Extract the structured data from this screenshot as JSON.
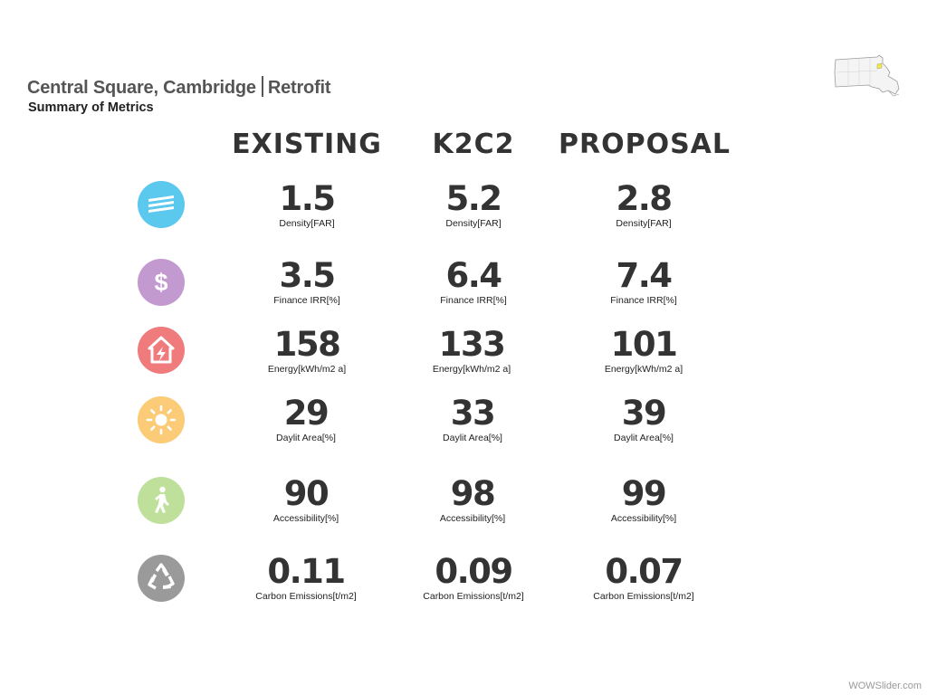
{
  "header": {
    "location": "Central Square, Cambridge",
    "scenario": "Retrofit",
    "subtitle": "Summary of Metrics"
  },
  "columns": [
    "EXISTING",
    "K2C2",
    "PROPOSAL"
  ],
  "metrics": [
    {
      "icon": "layers-icon",
      "color": "#5bc8ee",
      "label": "Density[FAR]",
      "values": [
        "1.5",
        "5.2",
        "2.8"
      ]
    },
    {
      "icon": "dollar-icon",
      "color": "#c39ad0",
      "label": "Finance IRR[%]",
      "values": [
        "3.5",
        "6.4",
        "7.4"
      ]
    },
    {
      "icon": "energy-house-icon",
      "color": "#ef7b7d",
      "label": "Energy[kWh/m2 a]",
      "values": [
        "158",
        "133",
        "101"
      ]
    },
    {
      "icon": "sun-icon",
      "color": "#fccb77",
      "label": "Daylit Area[%]",
      "values": [
        "29",
        "33",
        "39"
      ]
    },
    {
      "icon": "pedestrian-icon",
      "color": "#bfe09a",
      "label": "Accessibility[%]",
      "values": [
        "90",
        "98",
        "99"
      ]
    },
    {
      "icon": "recycle-icon",
      "color": "#9a9a9a",
      "label": "Carbon Emissions[t/m2]",
      "values": [
        "0.11",
        "0.09",
        "0.07"
      ]
    }
  ],
  "watermark": "WOWSlider.com"
}
